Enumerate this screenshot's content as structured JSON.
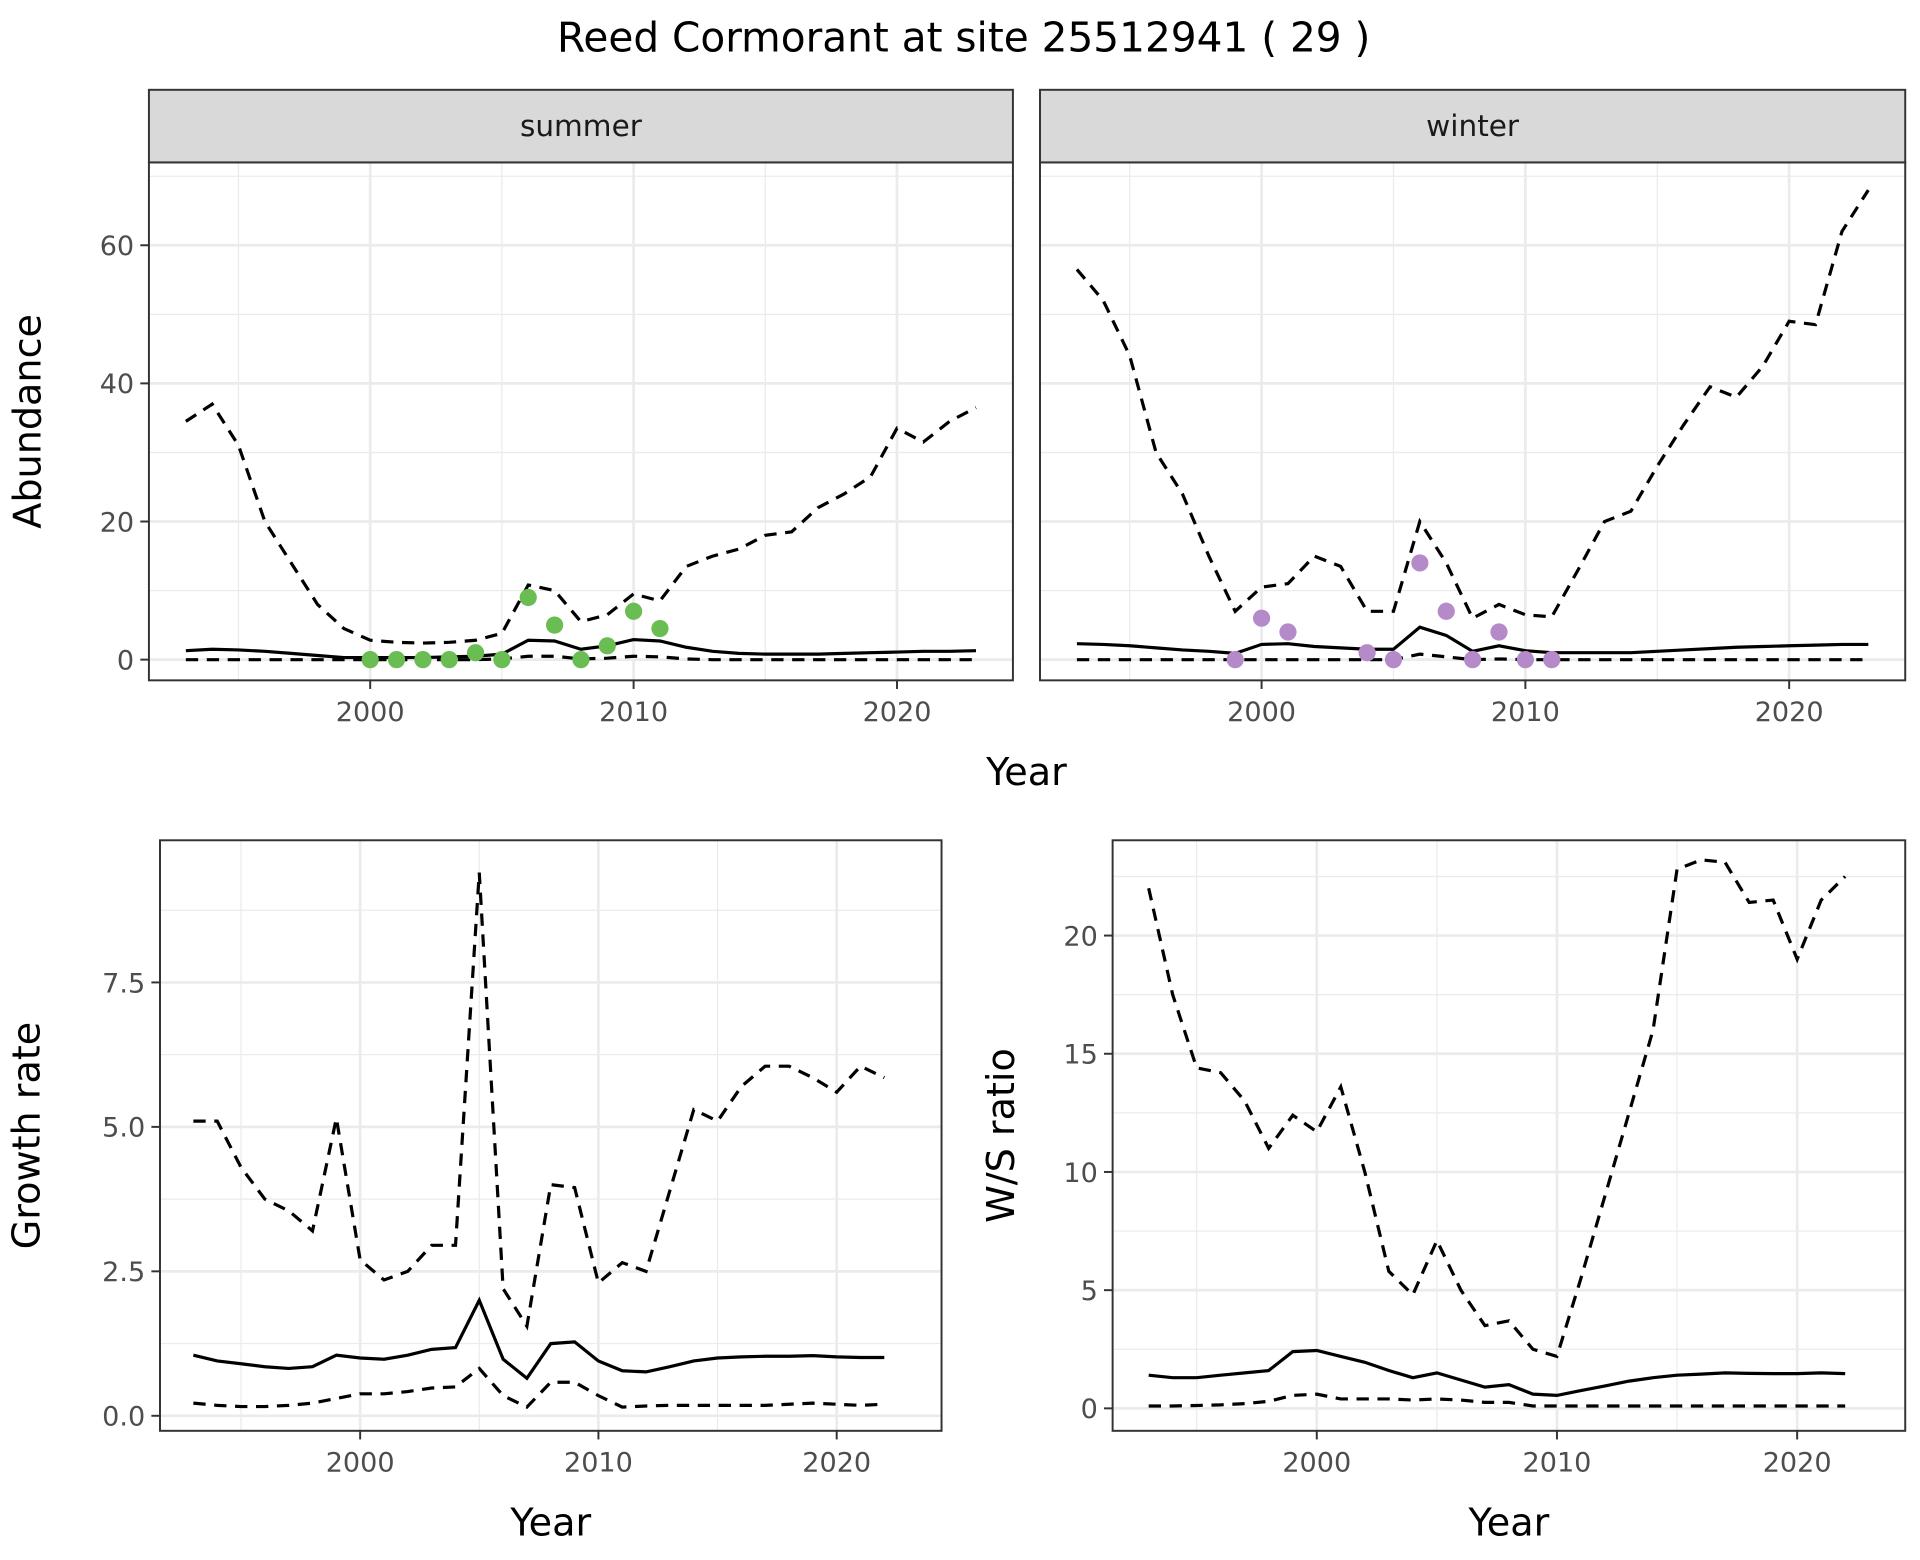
{
  "title": "Reed Cormorant at site 25512941 ( 29 )",
  "line_color": "#000000",
  "chart_data": [
    {
      "type": "line",
      "facet": "summer",
      "ylabel": "Abundance",
      "xlabel": "Year",
      "shared_xlabel": true,
      "xticks": [
        2000,
        2010,
        2020
      ],
      "yticks": [
        0,
        20,
        40,
        60
      ],
      "xlim": [
        1991.6,
        2024.4
      ],
      "ylim": [
        -3,
        72
      ],
      "grid": true,
      "x": [
        1993,
        1994,
        1995,
        1996,
        1997,
        1998,
        1999,
        2000,
        2001,
        2002,
        2003,
        2004,
        2005,
        2006,
        2007,
        2008,
        2009,
        2010,
        2011,
        2012,
        2013,
        2014,
        2015,
        2016,
        2017,
        2018,
        2019,
        2020,
        2021,
        2022,
        2023
      ],
      "series": [
        {
          "style": "dashed",
          "values": [
            34.5,
            37,
            31,
            20,
            14,
            8,
            4.5,
            2.8,
            2.5,
            2.4,
            2.5,
            2.8,
            3.8,
            10.8,
            10,
            5.5,
            6.5,
            9.5,
            8.5,
            13.5,
            15,
            16,
            18,
            18.5,
            22,
            24,
            26.5,
            33.5,
            31.5,
            34.5,
            36.5
          ]
        },
        {
          "style": "solid",
          "values": [
            1.3,
            1.5,
            1.4,
            1.2,
            0.9,
            0.6,
            0.3,
            0.3,
            0.3,
            0.3,
            0.4,
            0.5,
            0.8,
            2.8,
            2.7,
            1.5,
            2,
            2.9,
            2.7,
            1.8,
            1.2,
            0.9,
            0.8,
            0.8,
            0.8,
            0.9,
            1,
            1.1,
            1.2,
            1.2,
            1.3
          ]
        },
        {
          "style": "dashed",
          "values": [
            0,
            0,
            0,
            0,
            0,
            0,
            0,
            0,
            0,
            0,
            0,
            0,
            0.1,
            0.5,
            0.5,
            0.1,
            0.2,
            0.5,
            0.4,
            0.1,
            0,
            0,
            0,
            0,
            0,
            0,
            0,
            0,
            0,
            0,
            0
          ]
        }
      ],
      "points": {
        "color": "#6abd52",
        "x": [
          2000,
          2001,
          2002,
          2003,
          2004,
          2005,
          2006,
          2007,
          2008,
          2009,
          2010,
          2011
        ],
        "y": [
          0,
          0,
          0,
          0,
          1,
          0,
          9,
          5,
          0,
          2,
          7,
          4.5
        ]
      }
    },
    {
      "type": "line",
      "facet": "winter",
      "xticks": [
        2000,
        2010,
        2020
      ],
      "yticks": [
        0,
        20,
        40,
        60
      ],
      "xlim": [
        1991.6,
        2024.4
      ],
      "ylim": [
        -3,
        72
      ],
      "grid": true,
      "x": [
        1993,
        1994,
        1995,
        1996,
        1997,
        1998,
        1999,
        2000,
        2001,
        2002,
        2003,
        2004,
        2005,
        2006,
        2007,
        2008,
        2009,
        2010,
        2011,
        2012,
        2013,
        2014,
        2015,
        2016,
        2017,
        2018,
        2019,
        2020,
        2021,
        2022,
        2023
      ],
      "series": [
        {
          "style": "dashed",
          "values": [
            56.5,
            52,
            44,
            30,
            24,
            15,
            7,
            10.5,
            11,
            15,
            13.5,
            7,
            7,
            20,
            14,
            6,
            8,
            6.5,
            6.2,
            13,
            20,
            21.5,
            28,
            34,
            39.5,
            38,
            42.5,
            49,
            48.5,
            62,
            68
          ]
        },
        {
          "style": "solid",
          "values": [
            2.3,
            2.2,
            2,
            1.7,
            1.4,
            1.2,
            0.9,
            2.2,
            2.3,
            1.9,
            1.7,
            1.5,
            1.5,
            4.7,
            3.5,
            1.2,
            2,
            1.3,
            1,
            1,
            1,
            1,
            1.2,
            1.4,
            1.6,
            1.8,
            1.9,
            2,
            2.1,
            2.2,
            2.2
          ]
        },
        {
          "style": "dashed",
          "values": [
            0,
            0,
            0,
            0,
            0,
            0,
            0,
            0,
            0,
            0,
            0,
            0,
            0,
            0.8,
            0.4,
            0,
            0.1,
            0,
            0,
            0,
            0,
            0,
            0,
            0,
            0,
            0,
            0,
            0,
            0,
            0,
            0
          ]
        }
      ],
      "points": {
        "color": "#b58ac8",
        "x": [
          1999,
          2000,
          2001,
          2004,
          2005,
          2006,
          2007,
          2008,
          2009,
          2010,
          2011
        ],
        "y": [
          0,
          6,
          4,
          1,
          0,
          14,
          7,
          0,
          4,
          0,
          0
        ]
      }
    },
    {
      "type": "line",
      "ylabel": "Growth rate",
      "xlabel": "Year",
      "xticks": [
        2000,
        2010,
        2020
      ],
      "yticks": [
        0,
        2.5,
        5,
        7.5
      ],
      "ytick_labels": [
        "0.0",
        "2.5",
        "5.0",
        "7.5"
      ],
      "xlim": [
        1991.6,
        2024.4
      ],
      "ylim": [
        -0.26,
        9.96
      ],
      "grid": true,
      "x": [
        1993,
        1994,
        1995,
        1996,
        1997,
        1998,
        1999,
        2000,
        2001,
        2002,
        2003,
        2004,
        2005,
        2006,
        2007,
        2008,
        2009,
        2010,
        2011,
        2012,
        2013,
        2014,
        2015,
        2016,
        2017,
        2018,
        2019,
        2020,
        2021,
        2022
      ],
      "series": [
        {
          "style": "dashed",
          "values": [
            5.1,
            5.1,
            4.3,
            3.75,
            3.55,
            3.2,
            5.15,
            2.7,
            2.35,
            2.5,
            2.95,
            2.95,
            9.4,
            2.2,
            1.55,
            4.0,
            3.95,
            2.3,
            2.65,
            2.5,
            3.9,
            5.3,
            5.1,
            5.7,
            6.05,
            6.05,
            5.85,
            5.6,
            6.05,
            5.85
          ]
        },
        {
          "style": "solid",
          "values": [
            1.05,
            0.95,
            0.9,
            0.85,
            0.82,
            0.85,
            1.05,
            1.0,
            0.98,
            1.05,
            1.15,
            1.18,
            2.0,
            0.98,
            0.65,
            1.25,
            1.28,
            0.95,
            0.78,
            0.76,
            0.85,
            0.95,
            1.0,
            1.02,
            1.03,
            1.03,
            1.04,
            1.02,
            1.01,
            1.01
          ]
        },
        {
          "style": "dashed",
          "values": [
            0.22,
            0.18,
            0.16,
            0.16,
            0.18,
            0.22,
            0.3,
            0.38,
            0.38,
            0.42,
            0.48,
            0.5,
            0.82,
            0.35,
            0.15,
            0.58,
            0.58,
            0.35,
            0.15,
            0.17,
            0.18,
            0.18,
            0.18,
            0.18,
            0.18,
            0.2,
            0.22,
            0.2,
            0.18,
            0.2
          ]
        }
      ]
    },
    {
      "type": "line",
      "ylabel": "W/S ratio",
      "xlabel": "Year",
      "xticks": [
        2000,
        2010,
        2020
      ],
      "yticks": [
        0,
        5,
        10,
        15,
        20
      ],
      "xlim": [
        1991.5,
        2024.5
      ],
      "ylim": [
        -0.95,
        24.03
      ],
      "grid": true,
      "x": [
        1993,
        1994,
        1995,
        1996,
        1997,
        1998,
        1999,
        2000,
        2001,
        2002,
        2003,
        2004,
        2005,
        2006,
        2007,
        2008,
        2009,
        2010,
        2011,
        2012,
        2013,
        2014,
        2015,
        2016,
        2017,
        2018,
        2019,
        2020,
        2021,
        2022
      ],
      "series": [
        {
          "style": "dashed",
          "values": [
            22,
            17.5,
            14.4,
            14.2,
            13,
            11,
            12.4,
            11.7,
            13.6,
            10,
            5.8,
            4.8,
            7.1,
            5,
            3.5,
            3.7,
            2.5,
            2.2,
            5.5,
            9,
            12.5,
            16,
            22.8,
            23.2,
            23.1,
            21.4,
            21.5,
            19,
            21.5,
            22.5
          ]
        },
        {
          "style": "solid",
          "values": [
            1.4,
            1.3,
            1.3,
            1.4,
            1.5,
            1.6,
            2.4,
            2.45,
            2.2,
            1.95,
            1.6,
            1.3,
            1.5,
            1.2,
            0.9,
            1.0,
            0.6,
            0.55,
            0.75,
            0.95,
            1.15,
            1.3,
            1.4,
            1.45,
            1.5,
            1.48,
            1.47,
            1.47,
            1.5,
            1.47
          ]
        },
        {
          "style": "dashed",
          "values": [
            0.1,
            0.1,
            0.12,
            0.15,
            0.2,
            0.3,
            0.55,
            0.6,
            0.4,
            0.4,
            0.4,
            0.35,
            0.4,
            0.35,
            0.25,
            0.25,
            0.1,
            0.1,
            0.1,
            0.1,
            0.1,
            0.1,
            0.1,
            0.1,
            0.1,
            0.1,
            0.1,
            0.1,
            0.1,
            0.1
          ]
        }
      ]
    }
  ]
}
